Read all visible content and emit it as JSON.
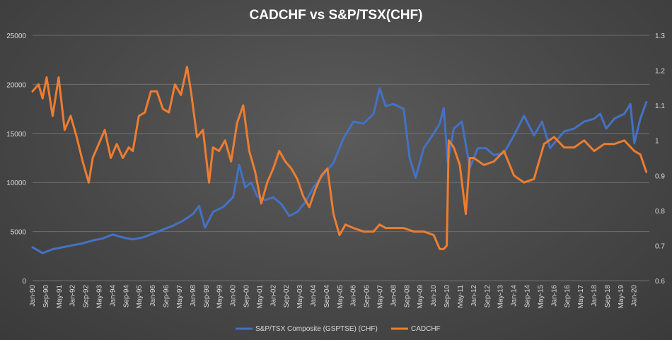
{
  "chart_data": {
    "type": "line",
    "title": "CADCHF vs S&P/TSX(CHF)",
    "x_tick_labels": [
      "Jan-90",
      "Sep-90",
      "May-91",
      "Jan-92",
      "Sep-92",
      "May-93",
      "Jan-94",
      "Sep-94",
      "May-95",
      "Jan-96",
      "Sep-96",
      "May-97",
      "Jan-98",
      "Sep-98",
      "May-99",
      "Jan-00",
      "Sep-00",
      "May-01",
      "Jan-02",
      "Sep-02",
      "May-03",
      "Jan-04",
      "Sep-04",
      "May-05",
      "Jan-06",
      "Sep-06",
      "May-07",
      "Jan-08",
      "Sep-08",
      "May-09",
      "Jan-10",
      "Sep-10",
      "May-11",
      "Jan-12",
      "Sep-12",
      "May-13",
      "Jan-14",
      "Sep-14",
      "May-15",
      "Jan-16",
      "Sep-16",
      "May-17",
      "Jan-18",
      "Sep-18",
      "May-19",
      "Jan-20"
    ],
    "y_left": {
      "ylim": [
        0,
        25000
      ],
      "ticks": [
        0,
        5000,
        10000,
        15000,
        20000,
        25000
      ]
    },
    "y_right": {
      "ylim": [
        0.6,
        1.3
      ],
      "ticks": [
        "0.6",
        "0.7",
        "0.8",
        "0.9",
        "1",
        "1.1",
        "1.2",
        "1.3"
      ]
    },
    "grid": true,
    "legend_position": "bottom",
    "series": [
      {
        "name": "S&P/TSX Composite (GSPTSE) (CHF)",
        "color": "#4472c4",
        "axis": "left",
        "x": [
          1990.0,
          1990.5,
          1991.0,
          1991.5,
          1992.0,
          1992.5,
          1993.0,
          1993.5,
          1994.0,
          1994.5,
          1995.0,
          1995.5,
          1996.0,
          1996.5,
          1997.0,
          1997.5,
          1998.0,
          1998.3,
          1998.6,
          1999.0,
          1999.5,
          2000.0,
          2000.3,
          2000.6,
          2000.9,
          2001.2,
          2001.6,
          2002.0,
          2002.4,
          2002.8,
          2003.2,
          2003.6,
          2004.0,
          2004.5,
          2005.0,
          2005.5,
          2006.0,
          2006.5,
          2007.0,
          2007.3,
          2007.6,
          2008.0,
          2008.5,
          2008.8,
          2009.1,
          2009.5,
          2010.0,
          2010.3,
          2010.5,
          2010.7,
          2011.0,
          2011.4,
          2011.8,
          2012.2,
          2012.6,
          2013.0,
          2013.5,
          2014.0,
          2014.5,
          2015.0,
          2015.4,
          2015.8,
          2016.0,
          2016.5,
          2017.0,
          2017.5,
          2018.0,
          2018.3,
          2018.6,
          2019.0,
          2019.5,
          2019.8,
          2020.0,
          2020.3,
          2020.6
        ],
        "values": [
          3400,
          2800,
          3200,
          3400,
          3600,
          3800,
          4100,
          4300,
          4700,
          4400,
          4200,
          4400,
          4800,
          5200,
          5600,
          6100,
          6800,
          7600,
          5400,
          7000,
          7500,
          8500,
          11800,
          9500,
          10000,
          8600,
          8200,
          8500,
          7800,
          6600,
          7000,
          8000,
          9500,
          10800,
          12000,
          14500,
          16200,
          16000,
          17000,
          19600,
          17800,
          18000,
          17500,
          12500,
          10500,
          13500,
          15000,
          16000,
          17600,
          12000,
          15500,
          16200,
          11500,
          13500,
          13500,
          12800,
          13000,
          14800,
          16800,
          14800,
          16200,
          13500,
          14000,
          15200,
          15500,
          16200,
          16500,
          17000,
          15500,
          16500,
          17000,
          18000,
          14000,
          16500,
          18200
        ]
      },
      {
        "name": "CADCHF",
        "color": "#ed7d31",
        "axis": "right",
        "x": [
          1990.0,
          1990.3,
          1990.5,
          1990.7,
          1991.0,
          1991.3,
          1991.6,
          1991.9,
          1992.2,
          1992.5,
          1992.8,
          1993.0,
          1993.3,
          1993.6,
          1993.9,
          1994.2,
          1994.5,
          1994.8,
          1995.0,
          1995.3,
          1995.6,
          1995.9,
          1996.2,
          1996.5,
          1996.8,
          1997.1,
          1997.4,
          1997.7,
          1997.9,
          1998.2,
          1998.5,
          1998.8,
          1999.0,
          1999.3,
          1999.6,
          1999.9,
          2000.2,
          2000.5,
          2000.8,
          2001.1,
          2001.4,
          2001.7,
          2002.0,
          2002.3,
          2002.6,
          2002.9,
          2003.2,
          2003.5,
          2003.8,
          2004.1,
          2004.4,
          2004.7,
          2005.0,
          2005.3,
          2005.6,
          2006.0,
          2006.5,
          2007.0,
          2007.3,
          2007.6,
          2008.0,
          2008.5,
          2009.0,
          2009.5,
          2010.0,
          2010.3,
          2010.5,
          2010.65,
          2010.75,
          2011.0,
          2011.3,
          2011.6,
          2011.8,
          2012.0,
          2012.5,
          2013.0,
          2013.5,
          2014.0,
          2014.5,
          2015.0,
          2015.5,
          2016.0,
          2016.5,
          2017.0,
          2017.5,
          2018.0,
          2018.5,
          2019.0,
          2019.5,
          2020.0,
          2020.3,
          2020.6
        ],
        "values": [
          1.14,
          1.16,
          1.12,
          1.18,
          1.07,
          1.18,
          1.03,
          1.07,
          1.01,
          0.94,
          0.88,
          0.95,
          0.99,
          1.03,
          0.95,
          0.99,
          0.95,
          0.98,
          0.97,
          1.07,
          1.08,
          1.14,
          1.14,
          1.09,
          1.08,
          1.16,
          1.13,
          1.21,
          1.14,
          1.01,
          1.03,
          0.88,
          0.98,
          0.97,
          1.0,
          0.94,
          1.05,
          1.1,
          0.97,
          0.91,
          0.82,
          0.88,
          0.92,
          0.97,
          0.94,
          0.92,
          0.89,
          0.84,
          0.81,
          0.86,
          0.9,
          0.92,
          0.79,
          0.73,
          0.76,
          0.75,
          0.74,
          0.74,
          0.76,
          0.75,
          0.75,
          0.75,
          0.74,
          0.74,
          0.73,
          0.69,
          0.69,
          0.7,
          1.0,
          0.98,
          0.93,
          0.79,
          0.95,
          0.95,
          0.93,
          0.94,
          0.97,
          0.9,
          0.88,
          0.89,
          0.99,
          1.01,
          0.98,
          0.98,
          1.0,
          0.97,
          0.99,
          0.99,
          1.0,
          0.97,
          0.96,
          0.91
        ]
      }
    ]
  }
}
